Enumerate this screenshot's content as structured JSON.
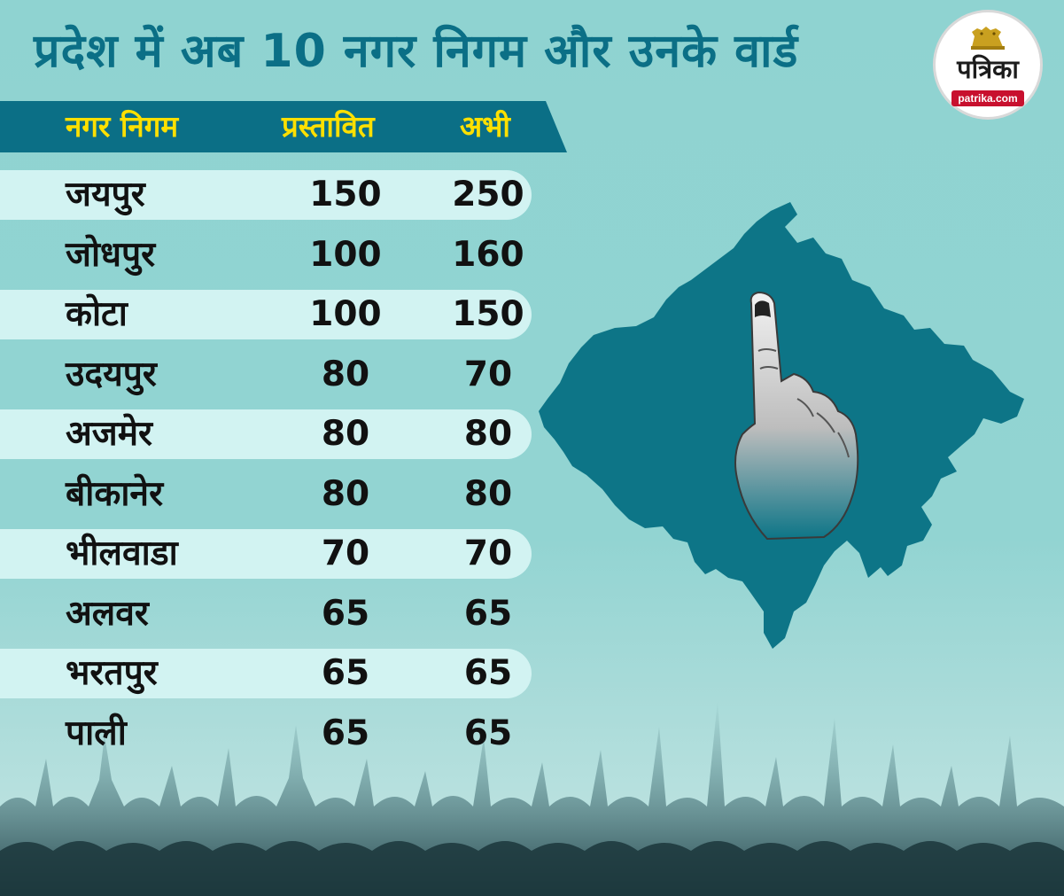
{
  "title": "प्रदेश में अब 10 नगर निगम और उनके वार्ड",
  "logo": {
    "name": "पत्रिका",
    "url": "patrika.com"
  },
  "table": {
    "headers": [
      "नगर निगम",
      "प्रस्तावित",
      "अभी"
    ],
    "rows": [
      {
        "city": "जयपुर",
        "proposed": "150",
        "current": "250"
      },
      {
        "city": "जोधपुर",
        "proposed": "100",
        "current": "160"
      },
      {
        "city": "कोटा",
        "proposed": "100",
        "current": "150"
      },
      {
        "city": "उदयपुर",
        "proposed": "80",
        "current": "70"
      },
      {
        "city": "अजमेर",
        "proposed": "80",
        "current": "80"
      },
      {
        "city": "बीकानेर",
        "proposed": "80",
        "current": "80"
      },
      {
        "city": "भीलवाडा",
        "proposed": "70",
        "current": "70"
      },
      {
        "city": "अलवर",
        "proposed": "65",
        "current": "65"
      },
      {
        "city": "भरतपुर",
        "proposed": "65",
        "current": "65"
      },
      {
        "city": "पाली",
        "proposed": "65",
        "current": "65"
      }
    ]
  },
  "colors": {
    "background": "#8fd3d1",
    "title": "#0b6f86",
    "header_band": "#0b6f86",
    "header_text": "#ffe000",
    "row_shade": "#d2f3f2",
    "map": "#0d7587",
    "logo_url_band": "#c8102e"
  },
  "icons": {
    "map": "rajasthan-map",
    "finger": "inked-voting-finger-icon",
    "logo": "lion-emblem-icon",
    "crowd": "crowd-silhouette"
  }
}
